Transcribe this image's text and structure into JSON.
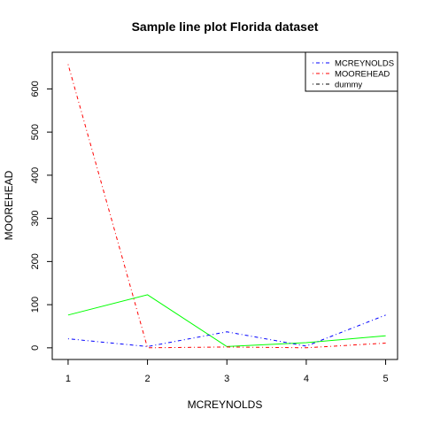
{
  "chart_data": {
    "type": "line",
    "title": "Sample line plot  Florida dataset",
    "xlabel": "MCREYNOLDS",
    "ylabel": "MOOREHEAD",
    "x": [
      1,
      2,
      3,
      4,
      5
    ],
    "xlim": [
      0.8,
      5.15
    ],
    "ylim": [
      -27,
      685
    ],
    "xticks": [
      1,
      2,
      3,
      4,
      5
    ],
    "yticks": [
      0,
      100,
      200,
      300,
      400,
      500,
      600
    ],
    "grid": false,
    "legend_position": "top-right",
    "series": [
      {
        "name": "MCREYNOLDS",
        "color": "#0000ff",
        "dash": "dotdash",
        "values": [
          21,
          3,
          37,
          4,
          76
        ]
      },
      {
        "name": "MOOREHEAD",
        "color": "#ff0000",
        "dash": "dotdash",
        "values": [
          657,
          0,
          2,
          0,
          11
        ]
      },
      {
        "name": "dummy",
        "color": "#000000",
        "dash": "dotdash",
        "values": null
      }
    ],
    "extra_series": [
      {
        "color": "#00ff00",
        "dash": "solid",
        "values": [
          76,
          123,
          3,
          12,
          28
        ]
      }
    ]
  }
}
